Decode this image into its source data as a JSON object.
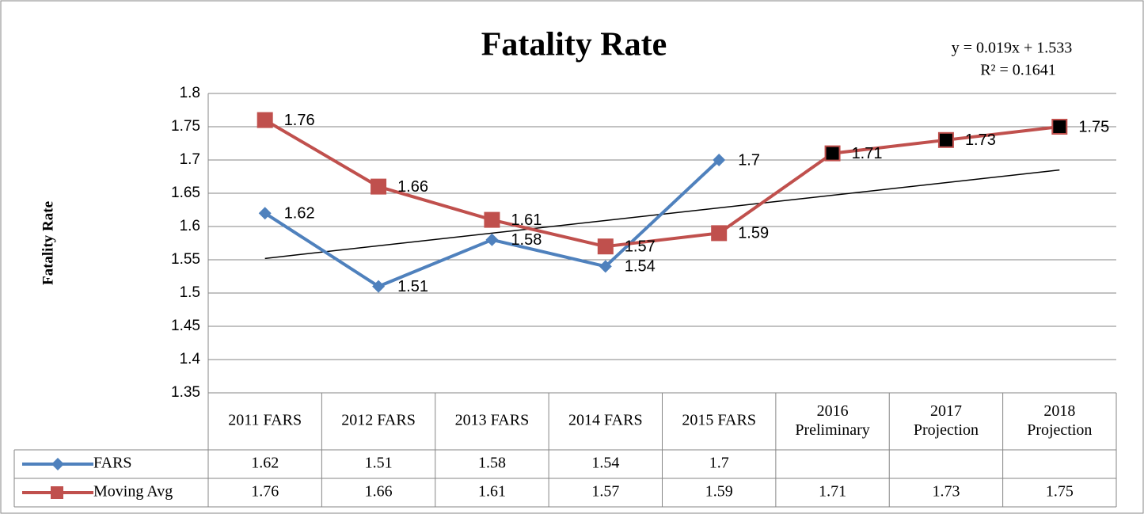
{
  "chart_data": {
    "type": "line",
    "title": "Fatality Rate",
    "y_label": "Fatality Rate",
    "trendline": {
      "equation": "y = 0.019x + 1.533",
      "r_squared": "R² = 0.1641",
      "slope": 0.019,
      "intercept": 1.533,
      "color": "#000000"
    },
    "categories": [
      "2011 FARS",
      "2012 FARS",
      "2013 FARS",
      "2014 FARS",
      "2015 FARS",
      "2016 Preliminary",
      "2017 Projection",
      "2018 Projection"
    ],
    "series": [
      {
        "name": "FARS",
        "color": "#4f81bd",
        "marker": "diamond",
        "marker_colors": [
          "#4f81bd",
          "#4f81bd",
          "#4f81bd",
          "#4f81bd",
          "#4f81bd",
          null,
          null,
          null
        ],
        "values": [
          1.62,
          1.51,
          1.58,
          1.54,
          1.7,
          null,
          null,
          null
        ]
      },
      {
        "name": "Moving Avg",
        "color": "#c0504d",
        "marker": "square",
        "marker_colors": [
          "#c0504d",
          "#c0504d",
          "#c0504d",
          "#c0504d",
          "#c0504d",
          "#000000",
          "#000000",
          "#000000"
        ],
        "values": [
          1.76,
          1.66,
          1.61,
          1.57,
          1.59,
          1.71,
          1.73,
          1.75
        ]
      }
    ],
    "ylim": [
      1.35,
      1.8
    ],
    "yticks": [
      1.35,
      1.4,
      1.45,
      1.5,
      1.55,
      1.6,
      1.65,
      1.7,
      1.75,
      1.8
    ],
    "grid": true,
    "data_table": true
  }
}
